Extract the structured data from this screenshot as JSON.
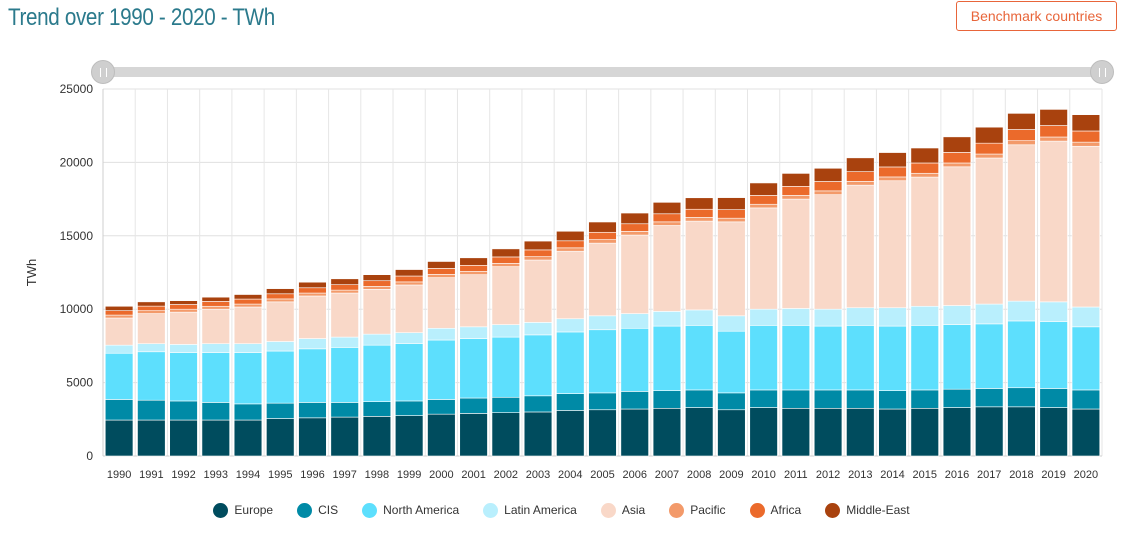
{
  "header": {
    "title": "Trend over 1990 - 2020 - TWh",
    "benchmark_label": "Benchmark countries"
  },
  "chart_data": {
    "type": "bar",
    "stacked": true,
    "ylabel": "TWh",
    "ylim": [
      0,
      25000
    ],
    "yticks": [
      0,
      5000,
      10000,
      15000,
      20000,
      25000
    ],
    "grid": true,
    "legend_position": "bottom",
    "categories": [
      "1990",
      "1991",
      "1992",
      "1993",
      "1994",
      "1995",
      "1996",
      "1997",
      "1998",
      "1999",
      "2000",
      "2001",
      "2002",
      "2003",
      "2004",
      "2005",
      "2006",
      "2007",
      "2008",
      "2009",
      "2010",
      "2011",
      "2012",
      "2013",
      "2014",
      "2015",
      "2016",
      "2017",
      "2018",
      "2019",
      "2020"
    ],
    "series": [
      {
        "name": "Europe",
        "color": "#004c5e",
        "values": [
          2450,
          2450,
          2450,
          2450,
          2450,
          2550,
          2600,
          2650,
          2700,
          2750,
          2850,
          2900,
          2950,
          3000,
          3100,
          3150,
          3200,
          3250,
          3300,
          3150,
          3300,
          3250,
          3250,
          3250,
          3200,
          3250,
          3300,
          3350,
          3350,
          3300,
          3200
        ]
      },
      {
        "name": "CIS",
        "color": "#008aa6",
        "values": [
          1400,
          1350,
          1300,
          1200,
          1100,
          1050,
          1050,
          1000,
          1000,
          1000,
          1000,
          1050,
          1050,
          1100,
          1150,
          1150,
          1200,
          1200,
          1200,
          1150,
          1200,
          1250,
          1250,
          1250,
          1250,
          1250,
          1250,
          1250,
          1300,
          1300,
          1300
        ]
      },
      {
        "name": "North America",
        "color": "#5ddffd",
        "values": [
          3150,
          3300,
          3300,
          3400,
          3500,
          3550,
          3650,
          3750,
          3850,
          3900,
          4050,
          4050,
          4100,
          4150,
          4200,
          4300,
          4300,
          4400,
          4400,
          4200,
          4400,
          4400,
          4350,
          4400,
          4400,
          4400,
          4400,
          4400,
          4550,
          4550,
          4300
        ]
      },
      {
        "name": "Latin America",
        "color": "#b9effd",
        "values": [
          550,
          550,
          550,
          600,
          600,
          650,
          700,
          700,
          750,
          750,
          800,
          800,
          850,
          850,
          900,
          950,
          1000,
          1000,
          1050,
          1050,
          1100,
          1150,
          1150,
          1200,
          1250,
          1300,
          1300,
          1350,
          1350,
          1350,
          1350
        ]
      },
      {
        "name": "Asia",
        "color": "#f9d8c8",
        "values": [
          1850,
          2050,
          2200,
          2350,
          2500,
          2700,
          2900,
          3000,
          3050,
          3250,
          3450,
          3550,
          3950,
          4250,
          4600,
          4950,
          5350,
          5850,
          6050,
          6400,
          6900,
          7450,
          7800,
          8350,
          8650,
          8800,
          9450,
          9950,
          10650,
          10950,
          10950
        ]
      },
      {
        "name": "Pacific",
        "color": "#f39a6a",
        "values": [
          200,
          200,
          200,
          200,
          200,
          200,
          200,
          200,
          210,
          210,
          220,
          220,
          220,
          230,
          230,
          240,
          250,
          250,
          250,
          250,
          250,
          250,
          260,
          260,
          260,
          260,
          260,
          270,
          280,
          280,
          280
        ]
      },
      {
        "name": "Africa",
        "color": "#eb6a2b",
        "values": [
          300,
          310,
          320,
          330,
          340,
          350,
          360,
          370,
          380,
          400,
          410,
          420,
          440,
          460,
          480,
          500,
          520,
          550,
          560,
          580,
          600,
          620,
          640,
          660,
          680,
          700,
          720,
          740,
          760,
          780,
          760
        ]
      },
      {
        "name": "Middle-East",
        "color": "#a9420e",
        "values": [
          300,
          290,
          260,
          290,
          310,
          350,
          380,
          400,
          410,
          440,
          470,
          510,
          550,
          600,
          650,
          700,
          730,
          780,
          780,
          820,
          850,
          880,
          900,
          940,
          980,
          1020,
          1060,
          1090,
          1100,
          1100,
          1110
        ]
      }
    ]
  }
}
